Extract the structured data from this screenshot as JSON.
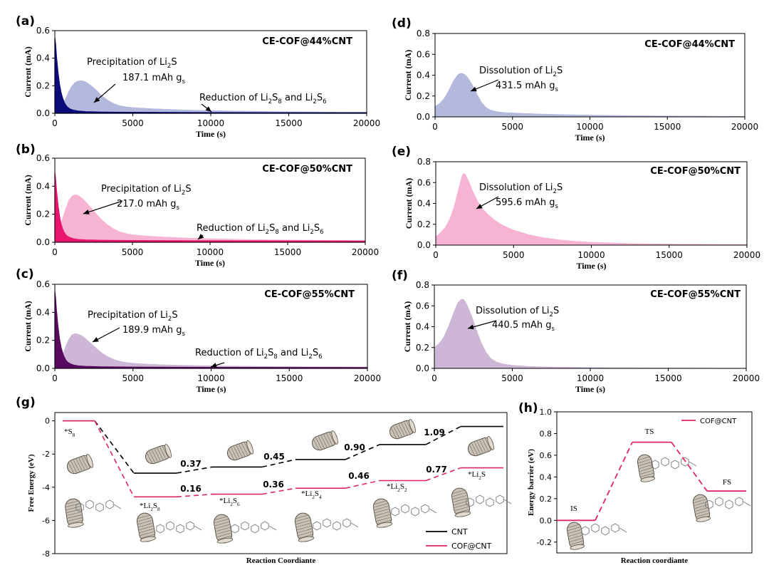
{
  "chart_data": [
    {
      "id": "a",
      "panel_label": "(a)",
      "type": "area",
      "title": "CE-COF@44%CNT",
      "xlabel": "Time (s)",
      "ylabel": "Current (mA)",
      "xlim": [
        0,
        20000
      ],
      "ylim": [
        0,
        0.6
      ],
      "xticks": [
        "0",
        "5000",
        "10000",
        "15000",
        "20000"
      ],
      "yticks": [
        "0.0",
        "0.2",
        "0.4",
        "0.6"
      ],
      "series": [
        {
          "name": "Precipitation of Li2S",
          "color": "#b3b8dd",
          "x": [
            0,
            150,
            300,
            500,
            700,
            900,
            1100,
            1300,
            1500,
            1700,
            1900,
            2100,
            2400,
            2700,
            3000,
            3400,
            3800,
            4200,
            4600,
            5000,
            6000,
            7000,
            8000,
            9000,
            10000,
            12000,
            14000,
            16000,
            18000,
            20000
          ],
          "y": [
            0.08,
            0.06,
            0.05,
            0.07,
            0.11,
            0.16,
            0.2,
            0.225,
            0.235,
            0.238,
            0.232,
            0.22,
            0.195,
            0.165,
            0.13,
            0.095,
            0.07,
            0.055,
            0.047,
            0.042,
            0.035,
            0.03,
            0.026,
            0.023,
            0.02,
            0.016,
            0.013,
            0.011,
            0.009,
            0.008
          ]
        },
        {
          "name": "Reduction of Li2S8 and Li2S6",
          "color": "#0b0b7a",
          "x": [
            0,
            50,
            100,
            200,
            300,
            400,
            500,
            600,
            700,
            800,
            1000,
            1200,
            1500,
            2000,
            3000,
            5000,
            10000,
            20000
          ],
          "y": [
            0.55,
            0.5,
            0.42,
            0.3,
            0.21,
            0.15,
            0.11,
            0.08,
            0.06,
            0.045,
            0.03,
            0.022,
            0.016,
            0.012,
            0.009,
            0.007,
            0.005,
            0.004
          ]
        }
      ],
      "annotations": [
        {
          "text": "Precipitation of Li",
          "sub": "2",
          "after": "S"
        },
        {
          "text": "187.1 mAh g",
          "sub": "s"
        },
        {
          "text": "Reduction of Li",
          "sub1": "2",
          "mid1": "S",
          "sub2": "8",
          "mid2": " and Li",
          "sub3": "2",
          "mid3": "S",
          "sub4": "6"
        }
      ]
    },
    {
      "id": "b",
      "panel_label": "(b)",
      "type": "area",
      "title": "CE-COF@50%CNT",
      "xlabel": "Time (s)",
      "ylabel": "Current (mA)",
      "xlim": [
        0,
        20000
      ],
      "ylim": [
        0,
        0.6
      ],
      "xticks": [
        "0",
        "5000",
        "10000",
        "15000",
        "20000"
      ],
      "yticks": [
        "0.0",
        "0.2",
        "0.4",
        "0.6"
      ],
      "series": [
        {
          "name": "Precipitation of Li2S",
          "color": "#f7b3d2",
          "x": [
            0,
            150,
            300,
            500,
            700,
            900,
            1100,
            1300,
            1500,
            1700,
            1900,
            2100,
            2400,
            2700,
            3000,
            3400,
            3800,
            4200,
            4600,
            5000,
            6000,
            7000,
            8000,
            9000,
            10000,
            12000,
            14000,
            16000,
            18000,
            20000
          ],
          "y": [
            0.12,
            0.1,
            0.11,
            0.17,
            0.24,
            0.3,
            0.33,
            0.34,
            0.335,
            0.32,
            0.3,
            0.275,
            0.24,
            0.2,
            0.165,
            0.125,
            0.095,
            0.075,
            0.062,
            0.054,
            0.044,
            0.038,
            0.033,
            0.029,
            0.026,
            0.021,
            0.018,
            0.016,
            0.014,
            0.012
          ]
        },
        {
          "name": "Reduction of Li2S8 and Li2S6",
          "color": "#e8156f",
          "x": [
            0,
            50,
            100,
            200,
            300,
            400,
            500,
            600,
            700,
            800,
            1000,
            1200,
            1500,
            2000,
            3000,
            5000,
            10000,
            20000
          ],
          "y": [
            0.5,
            0.45,
            0.38,
            0.27,
            0.19,
            0.13,
            0.095,
            0.07,
            0.055,
            0.043,
            0.032,
            0.025,
            0.02,
            0.017,
            0.014,
            0.012,
            0.01,
            0.008
          ]
        }
      ],
      "annotations": [
        {
          "text": "Precipitation of Li",
          "sub": "2",
          "after": "S"
        },
        {
          "text": "217.0 mAh g",
          "sub": "s"
        },
        {
          "text": "Reduction of Li",
          "sub1": "2",
          "mid1": "S",
          "sub2": "8",
          "mid2": " and Li",
          "sub3": "2",
          "mid3": "S",
          "sub4": "6"
        }
      ]
    },
    {
      "id": "c",
      "panel_label": "(c)",
      "type": "area",
      "title": "CE-COF@55%CNT",
      "xlabel": "Time (s)",
      "ylabel": "Current (mA)",
      "xlim": [
        0,
        20000
      ],
      "ylim": [
        0,
        0.6
      ],
      "xticks": [
        "0",
        "5000",
        "10000",
        "15000",
        "20000"
      ],
      "yticks": [
        "0.0",
        "0.2",
        "0.4",
        "0.6"
      ],
      "series": [
        {
          "name": "Precipitation of Li2S",
          "color": "#cdb6d6",
          "x": [
            0,
            150,
            300,
            500,
            700,
            900,
            1100,
            1300,
            1500,
            1700,
            1900,
            2100,
            2400,
            2700,
            3000,
            3400,
            3800,
            4200,
            4600,
            5000,
            6000,
            7000,
            8000,
            9000,
            10000,
            12000,
            14000,
            16000,
            18000,
            20000
          ],
          "y": [
            0.08,
            0.06,
            0.06,
            0.1,
            0.16,
            0.21,
            0.24,
            0.248,
            0.245,
            0.235,
            0.22,
            0.2,
            0.17,
            0.14,
            0.112,
            0.083,
            0.063,
            0.05,
            0.042,
            0.037,
            0.03,
            0.026,
            0.023,
            0.021,
            0.019,
            0.016,
            0.014,
            0.012,
            0.011,
            0.01
          ]
        },
        {
          "name": "Reduction of Li2S8 and Li2S6",
          "color": "#5a0a5e",
          "x": [
            0,
            50,
            100,
            200,
            300,
            400,
            500,
            600,
            700,
            800,
            1000,
            1200,
            1500,
            2000,
            3000,
            5000,
            10000,
            20000
          ],
          "y": [
            0.55,
            0.5,
            0.42,
            0.3,
            0.21,
            0.15,
            0.11,
            0.08,
            0.06,
            0.046,
            0.032,
            0.024,
            0.018,
            0.014,
            0.011,
            0.009,
            0.007,
            0.006
          ]
        }
      ],
      "annotations": [
        {
          "text": "Precipitation of Li",
          "sub": "2",
          "after": "S"
        },
        {
          "text": "189.9 mAh g",
          "sub": "s"
        },
        {
          "text": "Reduction of Li",
          "sub1": "2",
          "mid1": "S",
          "sub2": "8",
          "mid2": " and Li",
          "sub3": "2",
          "mid3": "S",
          "sub4": "6"
        }
      ]
    },
    {
      "id": "d",
      "panel_label": "(d)",
      "type": "area",
      "title": "CE-COF@44%CNT",
      "xlabel": "Time (s)",
      "ylabel": "Current (mA)",
      "xlim": [
        0,
        20000
      ],
      "ylim": [
        0,
        0.8
      ],
      "xticks": [
        "0",
        "5000",
        "10000",
        "15000",
        "20000"
      ],
      "yticks": [
        "0.0",
        "0.2",
        "0.4",
        "0.6",
        "0.8"
      ],
      "series": [
        {
          "name": "Dissolution of Li2S",
          "color": "#b3b8dd",
          "x": [
            0,
            300,
            600,
            900,
            1200,
            1500,
            1700,
            1900,
            2100,
            2400,
            2700,
            3000,
            3300,
            3600,
            4000,
            4500,
            5000,
            6000,
            7000,
            8000,
            10000,
            12000,
            14000,
            16000,
            18000,
            20000
          ],
          "y": [
            0.1,
            0.13,
            0.18,
            0.26,
            0.35,
            0.41,
            0.42,
            0.41,
            0.38,
            0.31,
            0.22,
            0.14,
            0.09,
            0.065,
            0.05,
            0.042,
            0.038,
            0.032,
            0.027,
            0.023,
            0.017,
            0.013,
            0.01,
            0.008,
            0.006,
            0.005
          ]
        }
      ],
      "annotations": [
        {
          "text": "Dissolution of Li",
          "sub": "2",
          "after": "S"
        },
        {
          "text": "431.5 mAh g",
          "sub": "s"
        }
      ]
    },
    {
      "id": "e",
      "panel_label": "(e)",
      "type": "area",
      "title": "CE-COF@50%CNT",
      "xlabel": "Time (s)",
      "ylabel": "Current (mA)",
      "xlim": [
        0,
        20000
      ],
      "ylim": [
        0,
        0.8
      ],
      "xticks": [
        "0",
        "5000",
        "10000",
        "15000",
        "20000"
      ],
      "yticks": [
        "0.0",
        "0.2",
        "0.4",
        "0.6",
        "0.8"
      ],
      "series": [
        {
          "name": "Dissolution of Li2S",
          "color": "#f7b3d2",
          "x": [
            0,
            300,
            600,
            900,
            1200,
            1500,
            1700,
            1800,
            1900,
            2100,
            2400,
            2700,
            3000,
            3400,
            3800,
            4200,
            4600,
            5000,
            6000,
            7000,
            8000,
            9000,
            10000,
            12000,
            14000,
            16000,
            18000,
            20000
          ],
          "y": [
            0.08,
            0.12,
            0.17,
            0.25,
            0.38,
            0.56,
            0.67,
            0.69,
            0.68,
            0.62,
            0.51,
            0.42,
            0.35,
            0.29,
            0.24,
            0.2,
            0.17,
            0.145,
            0.1,
            0.07,
            0.05,
            0.037,
            0.028,
            0.018,
            0.012,
            0.009,
            0.007,
            0.006
          ]
        }
      ],
      "annotations": [
        {
          "text": "Dissolution of Li",
          "sub": "2",
          "after": "S"
        },
        {
          "text": "595.6 mAh g",
          "sub": "s"
        }
      ]
    },
    {
      "id": "f",
      "panel_label": "(f)",
      "type": "area",
      "title": "CE-COF@55%CNT",
      "xlabel": "Time (s)",
      "ylabel": "Current (mA)",
      "xlim": [
        0,
        20000
      ],
      "ylim": [
        0,
        0.8
      ],
      "xticks": [
        "0",
        "5000",
        "10000",
        "15000",
        "20000"
      ],
      "yticks": [
        "0.0",
        "0.2",
        "0.4",
        "0.6",
        "0.8"
      ],
      "series": [
        {
          "name": "Dissolution of Li2S",
          "color": "#cdb6d6",
          "x": [
            0,
            300,
            600,
            900,
            1200,
            1500,
            1700,
            1800,
            1900,
            2100,
            2400,
            2700,
            3000,
            3300,
            3600,
            4000,
            4500,
            5000,
            6000,
            7000,
            8000,
            10000,
            12000,
            14000,
            16000,
            18000,
            20000
          ],
          "y": [
            0.2,
            0.24,
            0.3,
            0.4,
            0.52,
            0.63,
            0.66,
            0.665,
            0.66,
            0.61,
            0.5,
            0.37,
            0.25,
            0.16,
            0.1,
            0.06,
            0.04,
            0.03,
            0.02,
            0.015,
            0.012,
            0.008,
            0.006,
            0.005,
            0.004,
            0.003,
            0.003
          ]
        }
      ],
      "annotations": [
        {
          "text": "Dissolution of Li",
          "sub": "2",
          "after": "S"
        },
        {
          "text": "440.5 mAh g",
          "sub": "s"
        }
      ]
    },
    {
      "id": "g",
      "panel_label": "(g)",
      "type": "line",
      "title": "",
      "xlabel": "Reaction Coordiante",
      "ylabel": "Free Energy (eV)",
      "ylim": [
        -8,
        0.5
      ],
      "yticks": [
        "0",
        "-2",
        "-4",
        "-6",
        "-8"
      ],
      "steps": [
        "*S8",
        "*Li2S8",
        "*Li2S6",
        "*Li2S4",
        "*Li2S2",
        "*Li2S"
      ],
      "step_labels": [
        {
          "main": "*S",
          "sub": "8"
        },
        {
          "main": "*Li",
          "sub": "2",
          "tail": "S",
          "sub2": "8"
        },
        {
          "main": "*Li",
          "sub": "2",
          "tail": "S",
          "sub2": "6"
        },
        {
          "main": "*Li",
          "sub": "2",
          "tail": "S",
          "sub2": "4"
        },
        {
          "main": "*Li",
          "sub": "2",
          "tail": "S",
          "sub2": "2"
        },
        {
          "main": "*Li",
          "sub": "2",
          "tail": "S",
          "sub2": ""
        }
      ],
      "series": [
        {
          "name": "CNT",
          "color": "#000000",
          "values": [
            0,
            -3.15,
            -2.78,
            -2.33,
            -1.43,
            -0.34
          ]
        },
        {
          "name": "COF@CNT",
          "color": "#e0246e",
          "values": [
            0,
            -4.58,
            -4.42,
            -4.06,
            -3.6,
            -2.83
          ]
        }
      ],
      "cnt_step_values": [
        "0.37",
        "0.45",
        "0.90",
        "1.09"
      ],
      "cof_step_values": [
        "0.16",
        "0.36",
        "0.46",
        "0.77"
      ],
      "legend": [
        "CNT",
        "COF@CNT"
      ]
    },
    {
      "id": "h",
      "panel_label": "(h)",
      "type": "line",
      "title": "",
      "xlabel": "Reaction coordiante",
      "ylabel": "Energy barrier (eV)",
      "ylim": [
        -0.3,
        1.0
      ],
      "yticks": [
        "1.0",
        "0.8",
        "0.6",
        "0.4",
        "0.2",
        "0.0",
        "-0.2"
      ],
      "states": [
        "IS",
        "TS",
        "FS"
      ],
      "series": [
        {
          "name": "COF@CNT",
          "color": "#e0246e",
          "values": [
            0.0,
            0.72,
            0.27
          ]
        }
      ],
      "legend": [
        "COF@CNT"
      ]
    }
  ]
}
